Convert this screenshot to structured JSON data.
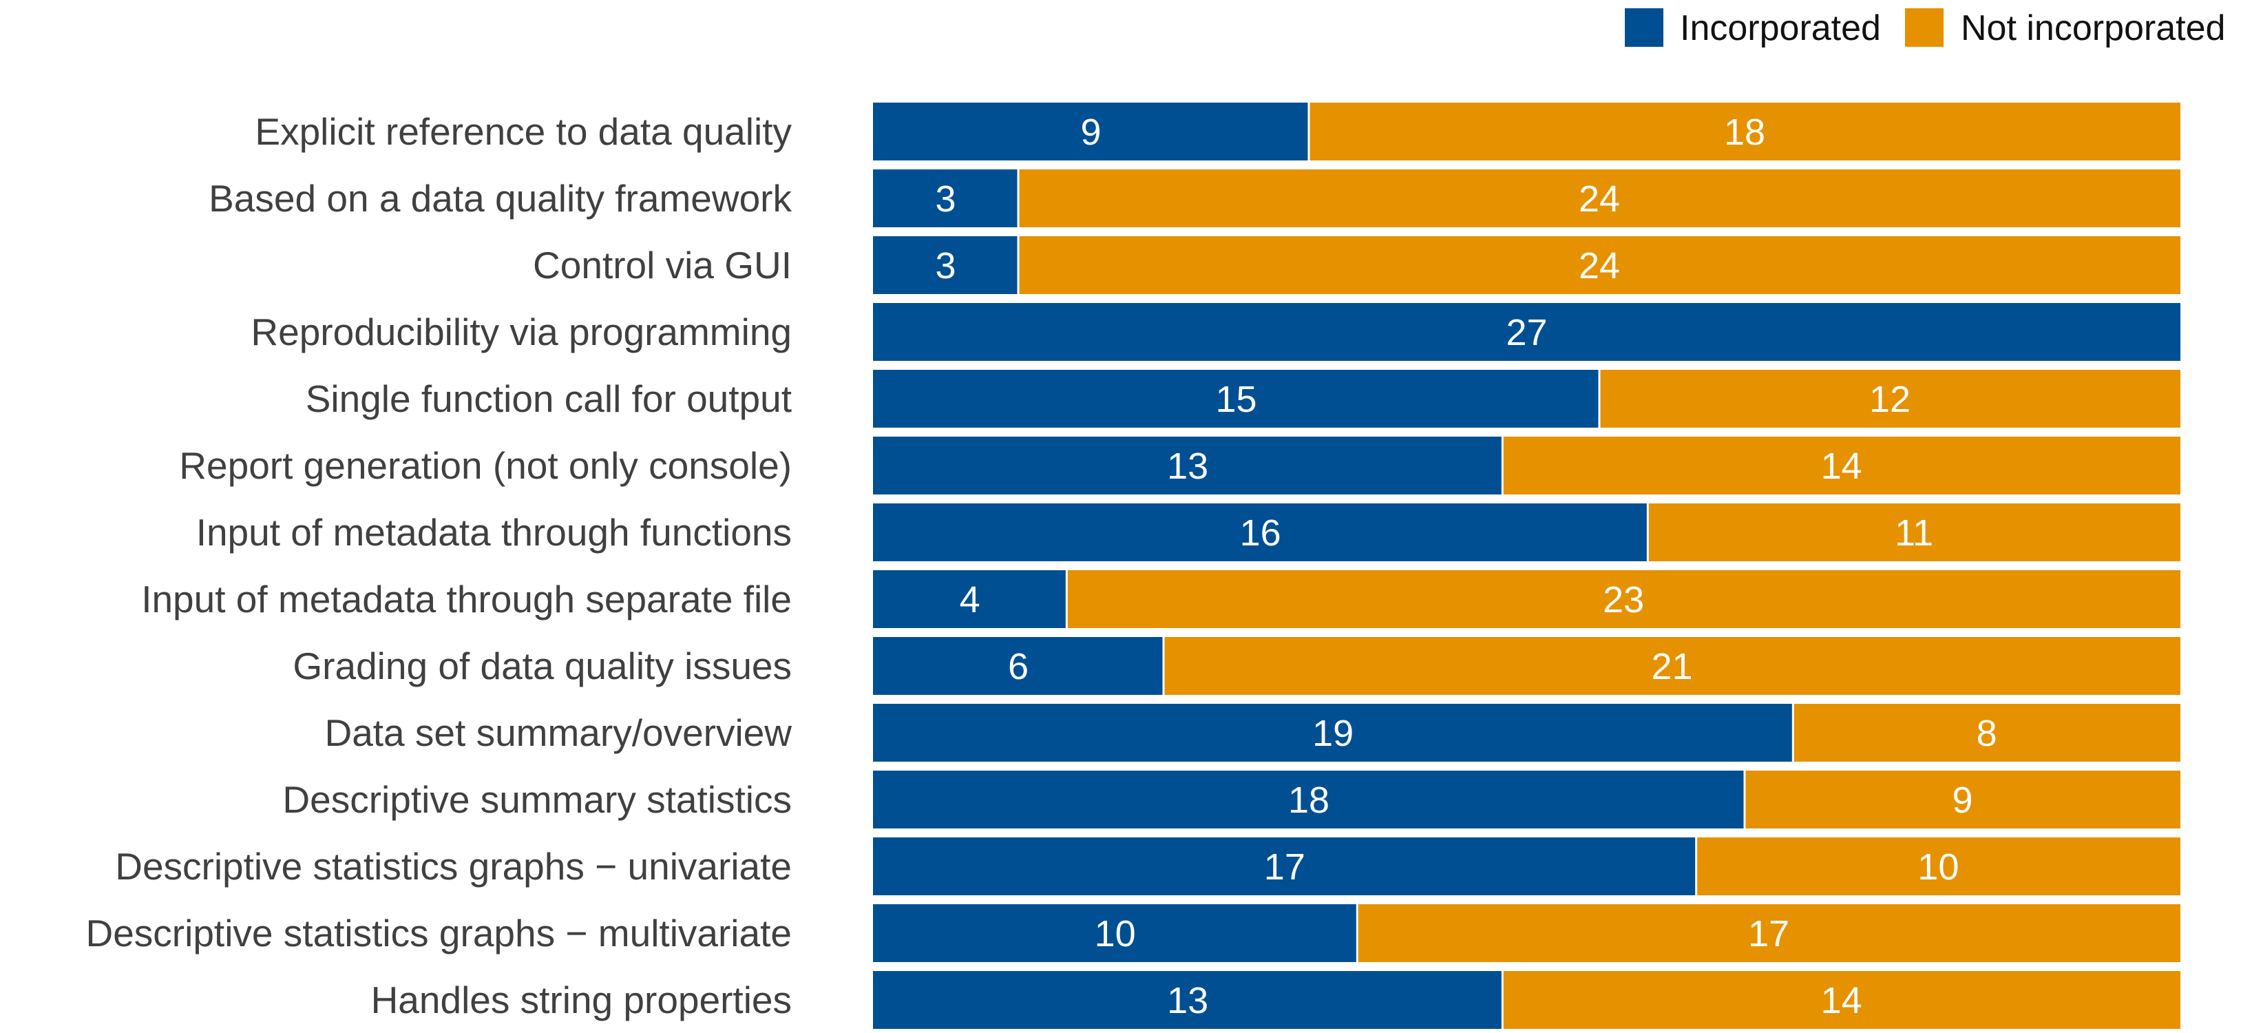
{
  "chart_data": {
    "type": "bar",
    "orientation": "horizontal",
    "stacked": true,
    "title": "",
    "xlabel": "",
    "ylabel": "",
    "xlim": [
      0,
      27
    ],
    "grid": false,
    "legend_position": "top-right",
    "categories": [
      "Explicit reference to data quality",
      "Based on a data quality framework",
      "Control via GUI",
      "Reproducibility via programming",
      "Single function call for output",
      "Report generation (not only console)",
      "Input of metadata through functions",
      "Input of metadata through separate file",
      "Grading of data quality issues",
      "Data set summary/overview",
      "Descriptive summary statistics",
      "Descriptive statistics graphs − univariate",
      "Descriptive statistics graphs − multivariate",
      "Handles string properties"
    ],
    "series": [
      {
        "name": "Incorporated",
        "color": "#004F93",
        "values": [
          9,
          3,
          3,
          27,
          15,
          13,
          16,
          4,
          6,
          19,
          18,
          17,
          10,
          13
        ]
      },
      {
        "name": "Not incorporated",
        "color": "#E69100",
        "values": [
          18,
          24,
          24,
          0,
          12,
          14,
          11,
          23,
          21,
          8,
          9,
          10,
          17,
          14
        ]
      }
    ]
  }
}
